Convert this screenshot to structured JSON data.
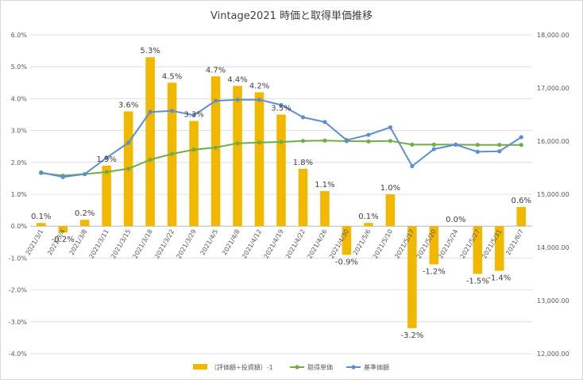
{
  "chart_data": {
    "type": "bar+line",
    "title": "Vintage2021 時価と取得単価推移",
    "categories": [
      "2021/3/1",
      "2021/3/4",
      "2021/3/8",
      "2021/3/11",
      "2021/3/15",
      "2021/3/18",
      "2021/3/22",
      "2021/3/29",
      "2021/4/5",
      "2021/4/8",
      "2021/4/12",
      "2021/4/19",
      "2021/4/22",
      "2021/4/26",
      "2021/4/30",
      "2021/5/6",
      "2021/5/10",
      "2021/5/17",
      "2021/5/20",
      "2021/5/24",
      "2021/5/27",
      "2021/5/31",
      "2021/6/7"
    ],
    "series": [
      {
        "name": "（評価額÷投資額）-1",
        "kind": "bar",
        "axis": "left",
        "color": "#F2B800",
        "values": [
          0.1,
          -0.2,
          0.2,
          1.9,
          3.6,
          5.3,
          4.5,
          3.3,
          4.7,
          4.4,
          4.2,
          3.5,
          1.8,
          1.1,
          -0.9,
          0.1,
          1.0,
          -3.2,
          -1.2,
          0.0,
          -1.5,
          -1.4,
          0.6
        ],
        "data_labels": [
          "0.1%",
          "-0.2%",
          "0.2%",
          "1.9%",
          "3.6%",
          "5.3%",
          "4.5%",
          "3.3%",
          "4.7%",
          "4.4%",
          "4.2%",
          "3.5%",
          "1.8%",
          "1.1%",
          "-0.9%",
          "0.1%",
          "1.0%",
          "-3.2%",
          "-1.2%",
          "0.0%",
          "-1.5%",
          "-1.4%",
          "0.6%"
        ]
      },
      {
        "name": "取得単価",
        "kind": "line",
        "axis": "right",
        "color": "#70AD47",
        "values": [
          15400,
          15350,
          15380,
          15420,
          15480,
          15650,
          15760,
          15840,
          15880,
          15960,
          15975,
          15985,
          16005,
          16010,
          16000,
          15995,
          16005,
          15935,
          15935,
          15935,
          15930,
          15930,
          15930
        ]
      },
      {
        "name": "基準価額",
        "kind": "line",
        "axis": "right",
        "color": "#5B8FD1",
        "values": [
          15410,
          15325,
          15380,
          15690,
          15970,
          16550,
          16570,
          16490,
          16760,
          16780,
          16780,
          16680,
          16450,
          16360,
          16020,
          16120,
          16260,
          15530,
          15850,
          15935,
          15800,
          15810,
          16075
        ]
      }
    ],
    "left_axis": {
      "min": -4,
      "max": 6,
      "step": 1,
      "format": "percent",
      "ticks": [
        "6.0%",
        "5.0%",
        "4.0%",
        "3.0%",
        "2.0%",
        "1.0%",
        "0.0%",
        "-1.0%",
        "-2.0%",
        "-3.0%",
        "-4.0%"
      ]
    },
    "right_axis": {
      "min": 12000,
      "max": 18000,
      "step": 1000,
      "ticks": [
        "18,000.00",
        "17,000.00",
        "16,000.00",
        "15,000.00",
        "14,000.00",
        "13,000.00",
        "12,000.00"
      ]
    },
    "legend": {
      "position": "bottom"
    },
    "grid": true
  }
}
